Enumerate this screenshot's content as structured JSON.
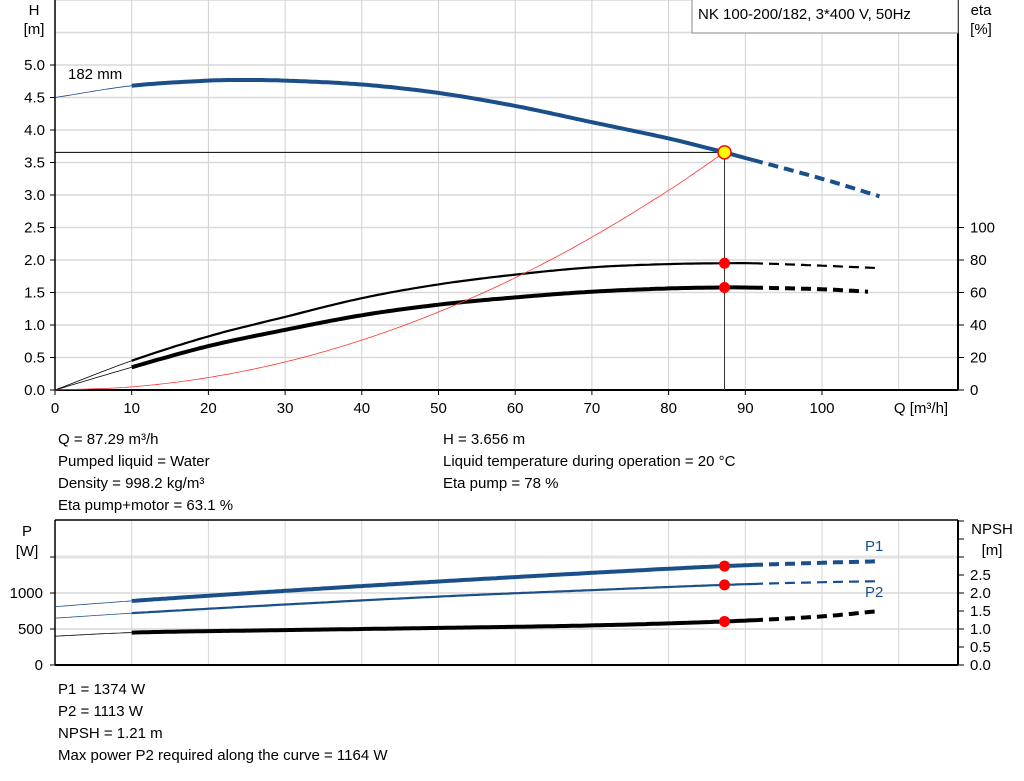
{
  "chart_data": [
    {
      "type": "line",
      "title": "NK 100-200/182, 3*400 V, 50Hz",
      "xlabel": "Q [m³/h]",
      "ylabel": [
        "H",
        "[m]"
      ],
      "y2label": [
        "eta",
        "[%]"
      ],
      "xlim": [
        0,
        110
      ],
      "ylim": [
        0,
        6
      ],
      "y2lim": [
        0,
        240
      ],
      "xticks": [
        "0",
        "10",
        "20",
        "30",
        "40",
        "50",
        "60",
        "70",
        "80",
        "90",
        "100"
      ],
      "yticks": [
        "0.0",
        "0.5",
        "1.0",
        "1.5",
        "2.0",
        "2.5",
        "3.0",
        "3.5",
        "4.0",
        "4.5",
        "5.0"
      ],
      "y2ticks": [
        "0",
        "20",
        "40",
        "60",
        "80",
        "100"
      ],
      "grid": true,
      "curve_label": "182 mm",
      "operating_point": {
        "Q": 87.29,
        "H": 3.656,
        "eta_pump": 78,
        "eta_pump_motor": 63.1
      },
      "series": [
        {
          "id": "head",
          "axis": "left",
          "color": "#1a4f8a",
          "valid_range": [
            10,
            91
          ],
          "x": [
            0,
            10,
            20,
            25,
            30,
            40,
            50,
            60,
            70,
            80,
            87.29,
            90,
            100,
            107.5
          ],
          "y": [
            4.5,
            4.68,
            4.76,
            4.77,
            4.76,
            4.7,
            4.57,
            4.37,
            4.12,
            3.87,
            3.656,
            3.57,
            3.25,
            2.98
          ]
        },
        {
          "id": "eta-pump",
          "axis": "right",
          "color": "#000000",
          "valid_range": [
            10,
            91
          ],
          "x": [
            0,
            10,
            20,
            30,
            40,
            50,
            60,
            70,
            80,
            87.29,
            91,
            100,
            107.5
          ],
          "y": [
            0,
            18,
            33,
            45,
            56.5,
            65,
            71,
            75.5,
            77.5,
            78,
            78,
            76.5,
            75
          ]
        },
        {
          "id": "eta-pump-motor",
          "axis": "right",
          "color": "#000000",
          "valid_range": [
            10,
            91
          ],
          "x": [
            0,
            10,
            20,
            30,
            40,
            50,
            60,
            70,
            80,
            87.29,
            91,
            100,
            106
          ],
          "y": [
            0,
            14,
            27,
            37,
            46,
            52.5,
            57,
            60.5,
            62.5,
            63.1,
            63,
            62,
            60.5
          ]
        },
        {
          "id": "system-curve",
          "axis": "left",
          "color": "#ff3333",
          "x": [
            0,
            10,
            20,
            30,
            40,
            50,
            60,
            70,
            80,
            87.29
          ],
          "y": [
            0,
            0.048,
            0.192,
            0.432,
            0.768,
            1.2,
            1.727,
            2.351,
            3.071,
            3.656
          ]
        }
      ]
    },
    {
      "type": "line",
      "ylabel": [
        "P",
        "[W]"
      ],
      "y2label": [
        "NPSH",
        "[m]"
      ],
      "xlim": [
        0,
        110
      ],
      "ylim": [
        0,
        2000
      ],
      "y2lim": [
        0,
        4
      ],
      "yticks": [
        "0",
        "500",
        "1000"
      ],
      "y2ticks": [
        "0.0",
        "0.5",
        "1.0",
        "1.5",
        "2.0",
        "2.5"
      ],
      "grid": true,
      "series": [
        {
          "id": "P1",
          "name": "P1",
          "axis": "left",
          "color": "#1a4f8a",
          "valid_range": [
            10,
            91
          ],
          "x": [
            0,
            10,
            30,
            50,
            70,
            87.29,
            100,
            107.5
          ],
          "y": [
            810,
            890,
            1030,
            1160,
            1280,
            1374,
            1420,
            1440
          ]
        },
        {
          "id": "P2",
          "name": "P2",
          "axis": "left",
          "color": "#1a4f8a",
          "valid_range": [
            10,
            91
          ],
          "x": [
            0,
            10,
            30,
            50,
            70,
            87.29,
            100,
            107.5
          ],
          "y": [
            650,
            720,
            840,
            950,
            1040,
            1113,
            1150,
            1164
          ]
        },
        {
          "id": "NPSH",
          "axis": "right",
          "color": "#000000",
          "valid_range": [
            10,
            91
          ],
          "x": [
            0,
            10,
            30,
            50,
            70,
            87.29,
            100,
            107.5
          ],
          "y": [
            0.8,
            0.9,
            0.97,
            1.03,
            1.1,
            1.21,
            1.35,
            1.5
          ]
        }
      ]
    }
  ],
  "info_top_left": [
    "Q = 87.29 m³/h",
    "Pumped liquid = Water",
    "Density = 998.2 kg/m³",
    "Eta pump+motor = 63.1 %"
  ],
  "info_top_right": [
    "H = 3.656 m",
    "Liquid temperature during operation = 20 °C",
    "Eta pump = 78 %"
  ],
  "info_bottom": [
    "P1 = 1374 W",
    "P2 = 1113 W",
    "NPSH = 1.21 m",
    "Max power P2 required along the curve = 1164 W"
  ]
}
